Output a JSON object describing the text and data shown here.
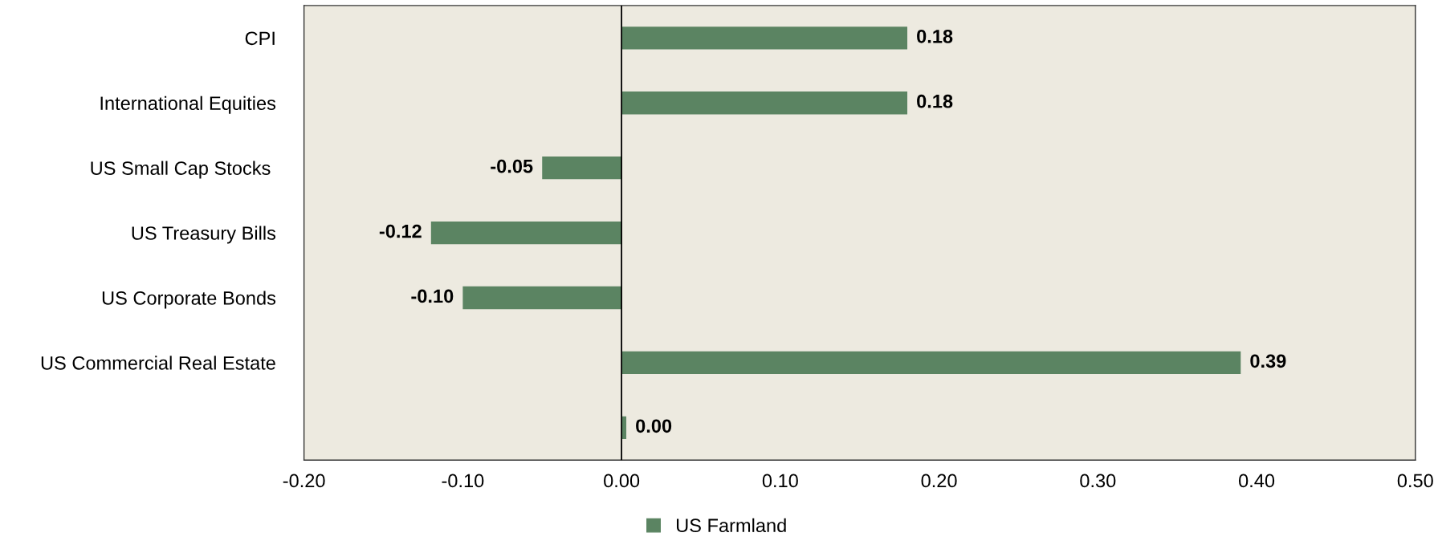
{
  "chart_data": {
    "type": "bar",
    "orientation": "horizontal",
    "categories": [
      "CPI",
      "International Equities",
      "US Small Cap Stocks ",
      "US Treasury Bills",
      "US Corporate Bonds",
      "US Commercial Real Estate",
      null
    ],
    "series": [
      {
        "name": "US Farmland",
        "color": "#5b8462",
        "values": [
          0.18,
          0.18,
          -0.05,
          -0.12,
          -0.1,
          0.39,
          0.003
        ],
        "value_labels": [
          "0.18",
          "0.18",
          "-0.05",
          "-0.12",
          "-0.10",
          "0.39",
          "0.00"
        ]
      }
    ],
    "xlim": [
      -0.2,
      0.5
    ],
    "xticks": [
      {
        "value": -0.2,
        "label": "-0.20"
      },
      {
        "value": -0.1,
        "label": "-0.10"
      },
      {
        "value": 0,
        "label": "0.00"
      },
      {
        "value": 0.1,
        "label": "0.10"
      },
      {
        "value": 0.2,
        "label": "0.20"
      },
      {
        "value": 0.3,
        "label": "0.30"
      },
      {
        "value": 0.4,
        "label": "0.40"
      },
      {
        "value": 0.5,
        "label": "0.50"
      }
    ],
    "ref_lines": [
      {
        "axis": "x",
        "value": 0,
        "color": "#000000"
      }
    ],
    "grid": false,
    "legend": "bottom"
  }
}
